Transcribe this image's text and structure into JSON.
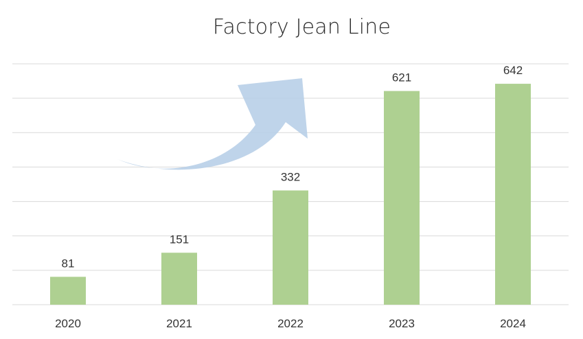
{
  "chart_data": {
    "type": "bar",
    "title": "Factory Jean Line",
    "categories": [
      "2020",
      "2021",
      "2022",
      "2023",
      "2024"
    ],
    "values": [
      81,
      151,
      332,
      621,
      642
    ],
    "data_labels": [
      "81",
      "151",
      "332",
      "621",
      "642"
    ],
    "xlabel": "",
    "ylabel": "",
    "ylim": [
      0,
      700
    ],
    "grid": true,
    "legend": "none",
    "bar_color": "#aed091",
    "grid_color": "#d9d9d9",
    "arrow_color": "#b8cfe8",
    "annotation": "upward-trend-arrow"
  }
}
